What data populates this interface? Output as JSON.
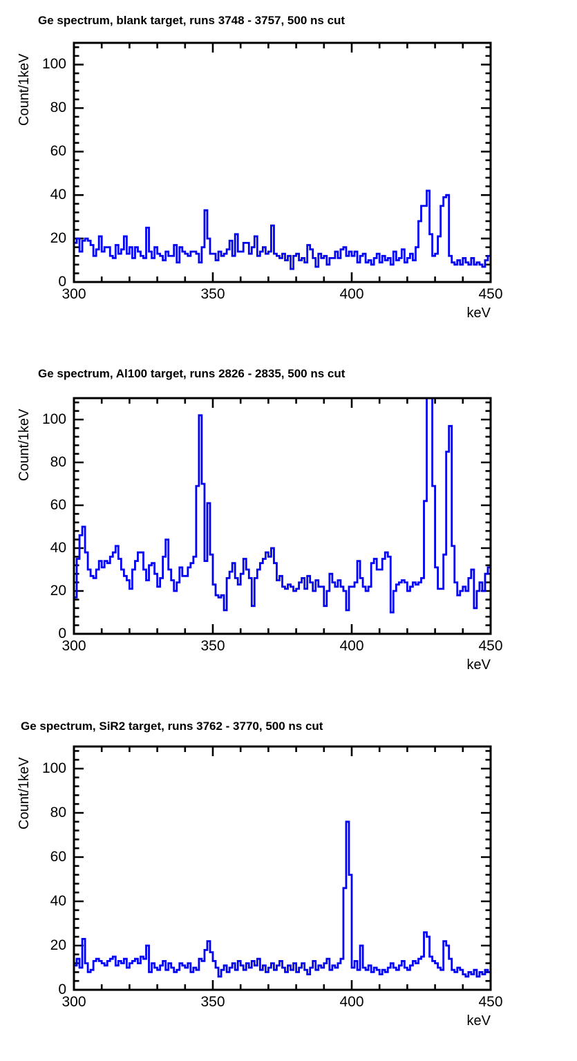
{
  "colors": {
    "histogram_line": "#0101f0",
    "axis": "#000000",
    "background": "#ffffff"
  },
  "chart_data": [
    {
      "type": "histogram-step",
      "title": "Ge spectrum, blank target, runs 3748 - 3757, 500 ns cut",
      "xlabel": "keV",
      "ylabel": "Count/1keV",
      "xlim": [
        300,
        450
      ],
      "ylim": [
        0,
        110
      ],
      "x_major_ticks": [
        300,
        350,
        400,
        450
      ],
      "x_minor_step": 10,
      "y_major_ticks": [
        0,
        20,
        40,
        60,
        80,
        100
      ],
      "y_minor_step": 4,
      "bin_start_kev": 300,
      "bin_width_kev": 1,
      "peaks_note": "peaks near 427 keV (42) and 434 keV (40)",
      "values": [
        18,
        20,
        14,
        19,
        20,
        19,
        17,
        12,
        15,
        21,
        14,
        16,
        16,
        12,
        11,
        17,
        13,
        15,
        21,
        13,
        16,
        11,
        16,
        14,
        12,
        11,
        25,
        14,
        11,
        16,
        13,
        12,
        10,
        14,
        12,
        12,
        17,
        9,
        16,
        14,
        13,
        12,
        14,
        14,
        13,
        9,
        16,
        33,
        20,
        13,
        13,
        10,
        14,
        12,
        13,
        15,
        19,
        12,
        22,
        14,
        14,
        18,
        18,
        13,
        16,
        21,
        12,
        14,
        16,
        13,
        14,
        26,
        13,
        12,
        11,
        13,
        10,
        12,
        6,
        12,
        13,
        10,
        11,
        9,
        17,
        15,
        11,
        7,
        13,
        11,
        12,
        8,
        11,
        11,
        14,
        11,
        15,
        16,
        12,
        14,
        12,
        14,
        9,
        12,
        13,
        9,
        10,
        8,
        11,
        13,
        9,
        12,
        10,
        11,
        8,
        14,
        10,
        11,
        15,
        9,
        11,
        13,
        10,
        16,
        28,
        35,
        35,
        42,
        22,
        12,
        13,
        21,
        35,
        39,
        40,
        12,
        9,
        8,
        10,
        8,
        11,
        9,
        8,
        11,
        8,
        9,
        8,
        7,
        10,
        12
      ]
    },
    {
      "type": "histogram-step",
      "title": "Ge spectrum, Al100 target, runs 2826 - 2835, 500 ns cut",
      "xlabel": "keV",
      "ylabel": "Count/1keV",
      "xlim": [
        300,
        450
      ],
      "ylim": [
        0,
        110
      ],
      "x_major_ticks": [
        300,
        350,
        400,
        450
      ],
      "x_minor_step": 10,
      "y_major_ticks": [
        0,
        20,
        40,
        60,
        80,
        100
      ],
      "y_minor_step": 4,
      "bin_start_kev": 300,
      "bin_width_kev": 1,
      "peaks_note": "peaks near 345 keV (102), 348 keV (61), 427 keV (off-scale), 435 keV (97)",
      "values": [
        17,
        35,
        46,
        50,
        38,
        30,
        27,
        26,
        30,
        34,
        31,
        34,
        33,
        36,
        38,
        41,
        35,
        30,
        27,
        25,
        21,
        30,
        34,
        38,
        38,
        30,
        25,
        32,
        33,
        28,
        22,
        26,
        36,
        44,
        30,
        25,
        20,
        24,
        31,
        27,
        27,
        31,
        33,
        36,
        69,
        102,
        70,
        34,
        61,
        37,
        23,
        18,
        17,
        18,
        11,
        26,
        29,
        33,
        26,
        23,
        28,
        35,
        30,
        26,
        13,
        26,
        30,
        33,
        35,
        38,
        36,
        40,
        33,
        25,
        27,
        22,
        21,
        23,
        22,
        20,
        21,
        24,
        26,
        21,
        27,
        24,
        20,
        25,
        22,
        22,
        13,
        20,
        28,
        24,
        22,
        25,
        22,
        20,
        11,
        22,
        22,
        24,
        34,
        26,
        22,
        20,
        22,
        33,
        35,
        30,
        30,
        35,
        38,
        36,
        10,
        20,
        23,
        24,
        25,
        24,
        20,
        22,
        24,
        23,
        24,
        26,
        62,
        116,
        114,
        69,
        31,
        21,
        21,
        37,
        85,
        97,
        41,
        24,
        18,
        20,
        22,
        20,
        26,
        30,
        12,
        20,
        24,
        20,
        28,
        31
      ]
    },
    {
      "type": "histogram-step",
      "title": "Ge spectrum, SiR2 target, runs 3762 - 3770, 500 ns cut",
      "xlabel": "keV",
      "ylabel": "Count/1keV",
      "xlim": [
        300,
        450
      ],
      "ylim": [
        0,
        110
      ],
      "x_major_ticks": [
        300,
        350,
        400,
        450
      ],
      "x_minor_step": 10,
      "y_major_ticks": [
        0,
        20,
        40,
        60,
        80,
        100
      ],
      "y_minor_step": 4,
      "bin_start_kev": 300,
      "bin_width_kev": 1,
      "peaks_note": "main peak near 398 keV (76), smaller peaks near 427 keV (26) and 433 keV (22)",
      "values": [
        11,
        14,
        10,
        23,
        12,
        8,
        9,
        13,
        14,
        13,
        12,
        11,
        13,
        14,
        15,
        11,
        13,
        12,
        14,
        10,
        12,
        13,
        14,
        12,
        15,
        14,
        20,
        8,
        12,
        10,
        9,
        11,
        13,
        9,
        12,
        10,
        8,
        9,
        12,
        11,
        10,
        12,
        8,
        10,
        9,
        14,
        13,
        18,
        22,
        17,
        13,
        10,
        6,
        9,
        11,
        8,
        10,
        12,
        9,
        13,
        11,
        9,
        12,
        10,
        13,
        11,
        14,
        9,
        11,
        8,
        10,
        12,
        9,
        11,
        13,
        10,
        8,
        11,
        9,
        12,
        8,
        10,
        12,
        9,
        7,
        10,
        13,
        9,
        11,
        10,
        12,
        14,
        9,
        11,
        10,
        12,
        14,
        46,
        76,
        52,
        10,
        13,
        9,
        20,
        10,
        9,
        11,
        8,
        10,
        9,
        7,
        9,
        8,
        10,
        12,
        10,
        9,
        11,
        13,
        10,
        9,
        11,
        13,
        12,
        14,
        15,
        26,
        24,
        15,
        13,
        12,
        10,
        9,
        22,
        20,
        14,
        9,
        8,
        10,
        9,
        7,
        6,
        8,
        7,
        9,
        6,
        8,
        7,
        9,
        8
      ]
    }
  ]
}
